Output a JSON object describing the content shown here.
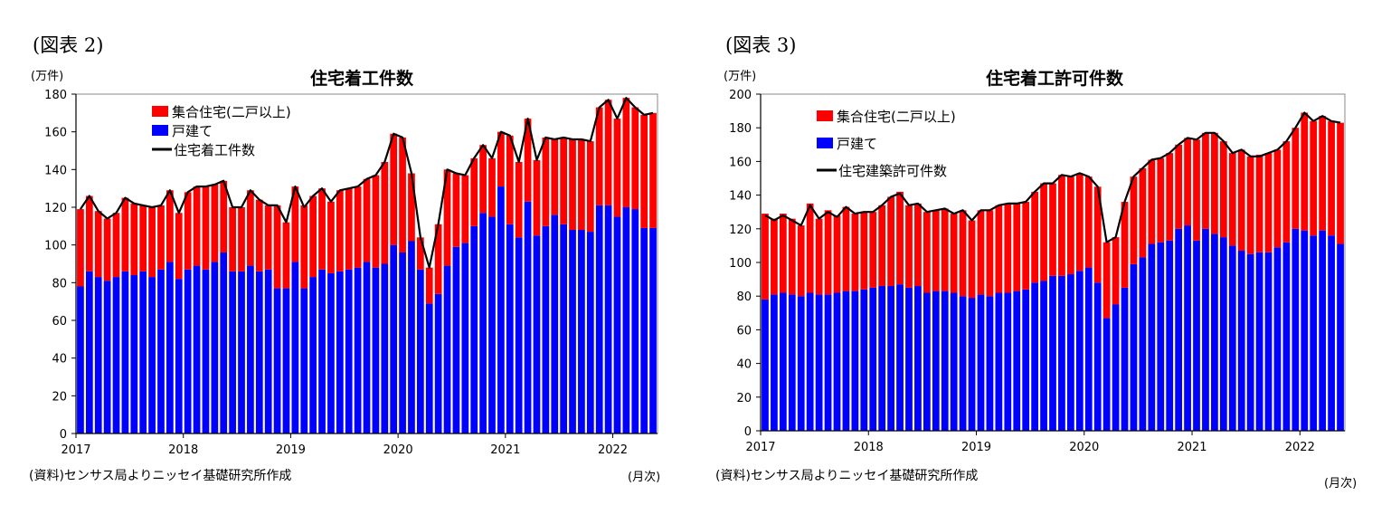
{
  "chart_data": [
    {
      "figure_label": "(図表 2)",
      "type": "bar",
      "stacked": true,
      "title": "住宅着工件数",
      "unit_label": "(万件)",
      "x_unit_label": "(月次)",
      "source": "(資料)センサス局よりニッセイ基礎研究所作成",
      "ylim": [
        0,
        180
      ],
      "yticks": [
        0,
        20,
        40,
        60,
        80,
        100,
        120,
        140,
        160,
        180
      ],
      "x_tick_labels": [
        "2017",
        "2018",
        "2019",
        "2020",
        "2021",
        "2022"
      ],
      "period": [
        "2017-01",
        "2022-04"
      ],
      "legend": [
        "集合住宅(二戸以上)",
        "戸建て",
        "住宅着工件数"
      ],
      "series": [
        {
          "name": "集合住宅(二戸以上)",
          "color": "#ff0000",
          "values": [
            41,
            40,
            35,
            33,
            34,
            39,
            38,
            35,
            37,
            34,
            38,
            35,
            41,
            42,
            44,
            41,
            38,
            34,
            34,
            40,
            38,
            34,
            44,
            35,
            40,
            44,
            43,
            43,
            38,
            43,
            43,
            43,
            44,
            49,
            54,
            59,
            61,
            36,
            17,
            19,
            37,
            51,
            39,
            36,
            36,
            36,
            31,
            29,
            47,
            40,
            44,
            40,
            47,
            40,
            46,
            48,
            48,
            48,
            52,
            56,
            52,
            58,
            54,
            60,
            61
          ]
        },
        {
          "name": "戸建て",
          "color": "#0000ff",
          "values": [
            78,
            86,
            83,
            81,
            83,
            86,
            84,
            86,
            83,
            87,
            91,
            82,
            87,
            89,
            87,
            91,
            96,
            86,
            86,
            89,
            86,
            87,
            77,
            77,
            91,
            77,
            83,
            87,
            85,
            86,
            87,
            88,
            91,
            88,
            90,
            100,
            96,
            102,
            87,
            69,
            74,
            89,
            99,
            101,
            110,
            117,
            115,
            131,
            111,
            104,
            123,
            105,
            110,
            116,
            111,
            108,
            108,
            107,
            121,
            121,
            115,
            120,
            119,
            109,
            109
          ]
        },
        {
          "name": "住宅着工件数",
          "color": "#000000",
          "type": "line",
          "values": [
            119,
            126,
            118,
            114,
            117,
            125,
            122,
            121,
            120,
            121,
            129,
            117,
            128,
            131,
            131,
            132,
            134,
            120,
            120,
            129,
            124,
            121,
            121,
            112,
            131,
            120,
            126,
            130,
            123,
            129,
            130,
            131,
            135,
            137,
            144,
            159,
            157,
            138,
            104,
            88,
            111,
            140,
            138,
            137,
            146,
            153,
            146,
            160,
            158,
            144,
            167,
            145,
            157,
            156,
            157,
            156,
            156,
            155,
            173,
            177,
            167,
            178,
            173,
            169,
            170
          ]
        }
      ]
    },
    {
      "figure_label": "(図表 3)",
      "type": "bar",
      "stacked": true,
      "title": "住宅着工許可件数",
      "unit_label": "(万件)",
      "x_unit_label": "(月次)",
      "source": "(資料)センサス局よりニッセイ基礎研究所作成",
      "ylim": [
        0,
        200
      ],
      "yticks": [
        0,
        20,
        40,
        60,
        80,
        100,
        120,
        140,
        160,
        180,
        200
      ],
      "x_tick_labels": [
        "2017",
        "2018",
        "2019",
        "2020",
        "2021",
        "2022"
      ],
      "period": [
        "2017-01",
        "2022-04"
      ],
      "legend": [
        "集合住宅(二戸以上)",
        "戸建て",
        "住宅建築許可件数"
      ],
      "series": [
        {
          "name": "集合住宅(二戸以上)",
          "color": "#ff0000",
          "values": [
            51,
            45,
            47,
            45,
            42,
            53,
            45,
            50,
            46,
            50,
            46,
            46,
            45,
            48,
            53,
            55,
            49,
            49,
            48,
            48,
            49,
            47,
            51,
            46,
            50,
            51,
            52,
            53,
            52,
            52,
            54,
            58,
            55,
            60,
            58,
            58,
            54,
            57,
            45,
            40,
            51,
            52,
            53,
            50,
            50,
            52,
            50,
            52,
            60,
            57,
            60,
            57,
            55,
            60,
            58,
            58,
            59,
            58,
            60,
            60,
            70,
            68,
            68,
            68,
            72
          ]
        },
        {
          "name": "戸建て",
          "color": "#0000ff",
          "values": [
            78,
            81,
            82,
            81,
            80,
            82,
            81,
            81,
            82,
            83,
            83,
            84,
            85,
            86,
            86,
            87,
            85,
            86,
            82,
            83,
            83,
            82,
            80,
            79,
            81,
            80,
            82,
            82,
            83,
            84,
            88,
            89,
            92,
            92,
            93,
            95,
            97,
            88,
            67,
            75,
            85,
            99,
            103,
            111,
            112,
            113,
            120,
            122,
            113,
            120,
            117,
            115,
            110,
            107,
            105,
            106,
            106,
            109,
            112,
            120,
            119,
            116,
            119,
            116,
            111
          ]
        },
        {
          "name": "住宅建築許可件数",
          "color": "#000000",
          "type": "line",
          "values": [
            128,
            125,
            128,
            125,
            122,
            134,
            126,
            130,
            127,
            133,
            129,
            130,
            130,
            134,
            139,
            141,
            134,
            135,
            130,
            131,
            132,
            129,
            131,
            125,
            131,
            131,
            134,
            135,
            135,
            136,
            142,
            147,
            147,
            152,
            151,
            153,
            151,
            145,
            112,
            115,
            136,
            151,
            156,
            161,
            162,
            165,
            170,
            174,
            173,
            177,
            177,
            172,
            165,
            167,
            163,
            163,
            165,
            167,
            172,
            180,
            189,
            184,
            187,
            184,
            183
          ]
        }
      ]
    }
  ]
}
